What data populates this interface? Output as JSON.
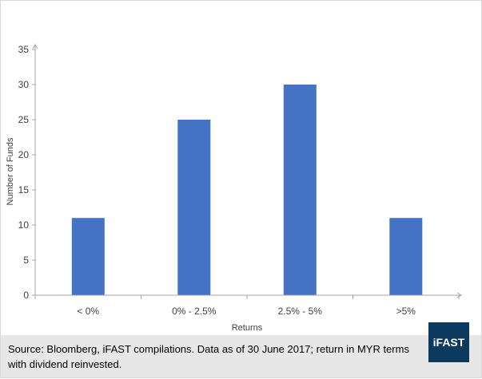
{
  "chart_data": {
    "type": "bar",
    "categories": [
      "< 0%",
      "0% - 2.5%",
      "2.5% - 5%",
      ">5%"
    ],
    "values": [
      11,
      25,
      30,
      11
    ],
    "title": "",
    "xlabel": "Returns",
    "ylabel": "Number of Funds",
    "ylim": [
      0,
      35
    ],
    "yticks": [
      0,
      5,
      10,
      15,
      20,
      25,
      30,
      35
    ],
    "grid": false,
    "legend": "none",
    "bar_color": "#4472c4",
    "axis_color": "#a6a6a6"
  },
  "footer": {
    "source": "Source: Bloomberg, iFAST compilations. Data as of 30 June 2017;  return in MYR terms with dividend reinvested."
  },
  "brand": {
    "logo_text": "iFAST",
    "logo_color": "#0c3a5e"
  }
}
